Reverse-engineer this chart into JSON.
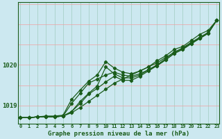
{
  "title": "Graphe pression niveau de la mer (hPa)",
  "bg_color": "#cce8f0",
  "grid_color_h": "#f0a0a0",
  "grid_color_v": "#a0ccc0",
  "line_color": "#1a5c1a",
  "x_labels": [
    "0",
    "1",
    "2",
    "3",
    "4",
    "5",
    "6",
    "7",
    "8",
    "9",
    "10",
    "11",
    "12",
    "13",
    "14",
    "15",
    "16",
    "17",
    "18",
    "19",
    "20",
    "21",
    "22",
    "23"
  ],
  "yticks": [
    1019,
    1020
  ],
  "ylim": [
    1018.55,
    1021.55
  ],
  "xlim": [
    -0.3,
    23.3
  ],
  "series": [
    [
      1018.7,
      1018.7,
      1018.72,
      1018.72,
      1018.72,
      1018.74,
      1018.82,
      1018.95,
      1019.1,
      1019.25,
      1019.4,
      1019.55,
      1019.65,
      1019.75,
      1019.85,
      1019.95,
      1020.05,
      1020.18,
      1020.3,
      1020.42,
      1020.55,
      1020.68,
      1020.8,
      1021.1
    ],
    [
      1018.7,
      1018.7,
      1018.72,
      1018.72,
      1018.72,
      1018.74,
      1019.05,
      1019.3,
      1019.55,
      1019.65,
      1019.75,
      1019.82,
      1019.75,
      1019.72,
      1019.78,
      1019.88,
      1019.98,
      1020.12,
      1020.28,
      1020.38,
      1020.52,
      1020.65,
      1020.78,
      1021.1
    ],
    [
      1018.7,
      1018.7,
      1018.72,
      1018.72,
      1018.72,
      1018.74,
      1018.85,
      1019.1,
      1019.3,
      1019.48,
      1019.95,
      1019.78,
      1019.68,
      1019.68,
      1019.75,
      1019.88,
      1020.0,
      1020.15,
      1020.32,
      1020.4,
      1020.55,
      1020.65,
      1020.78,
      1021.1
    ],
    [
      1018.7,
      1018.7,
      1018.72,
      1018.72,
      1018.72,
      1018.74,
      1018.85,
      1019.05,
      1019.28,
      1019.42,
      1019.58,
      1019.72,
      1019.62,
      1019.62,
      1019.72,
      1019.85,
      1019.98,
      1020.12,
      1020.28,
      1020.38,
      1020.52,
      1020.65,
      1020.78,
      1021.1
    ],
    [
      1018.7,
      1018.7,
      1018.72,
      1018.74,
      1018.74,
      1018.76,
      1019.15,
      1019.38,
      1019.6,
      1019.75,
      1020.08,
      1019.92,
      1019.82,
      1019.78,
      1019.85,
      1019.95,
      1020.1,
      1020.22,
      1020.38,
      1020.45,
      1020.6,
      1020.75,
      1020.85,
      1021.1
    ]
  ]
}
